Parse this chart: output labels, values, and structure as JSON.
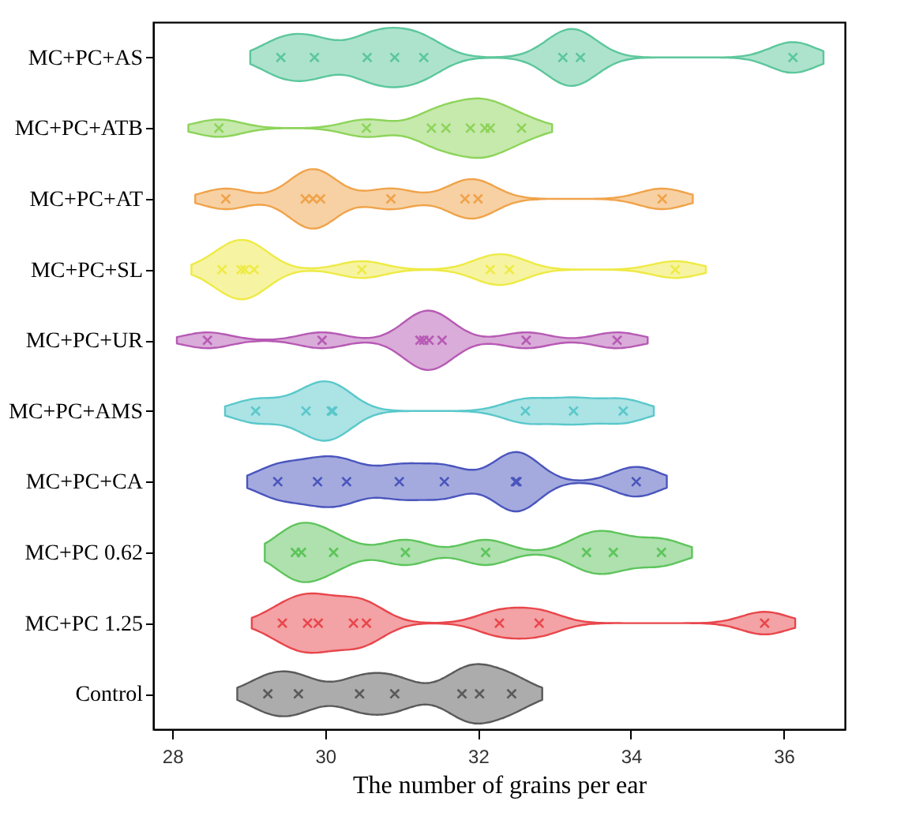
{
  "chart_data": {
    "type": "scatter",
    "orientation": "horizontal",
    "xlabel": "The number of grains per ear",
    "categories": [
      "MC+PC+AS",
      "MC+PC+ATB",
      "MC+PC+AT",
      "MC+PC+SL",
      "MC+PC+UR",
      "MC+PC+AMS",
      "MC+PC+CA",
      "MC+PC 0.62",
      "MC+PC 1.25",
      "Control"
    ],
    "series": [
      {
        "color": "#5cc79c",
        "x": [
          "MC+PC+AS",
          "MC+PC+AS",
          "MC+PC+AS",
          "MC+PC+AS",
          "MC+PC+AS",
          "MC+PC+AS",
          "MC+PC+AS",
          "MC+PC+AS"
        ],
        "values": [
          29.42,
          29.86,
          30.55,
          30.91,
          31.29,
          33.11,
          33.34,
          36.12
        ]
      },
      {
        "color": "#8dd45a",
        "x": [
          "MC+PC+ATB",
          "MC+PC+ATB",
          "MC+PC+ATB",
          "MC+PC+ATB",
          "MC+PC+ATB",
          "MC+PC+ATB",
          "MC+PC+ATB",
          "MC+PC+ATB"
        ],
        "values": [
          28.61,
          30.54,
          31.39,
          31.58,
          31.9,
          32.09,
          32.16,
          32.57
        ]
      },
      {
        "color": "#f0a34a",
        "x": [
          "MC+PC+AT",
          "MC+PC+AT",
          "MC+PC+AT",
          "MC+PC+AT",
          "MC+PC+AT",
          "MC+PC+AT",
          "MC+PC+AT",
          "MC+PC+AT"
        ],
        "values": [
          28.7,
          29.74,
          29.84,
          29.94,
          30.86,
          31.83,
          32.0,
          34.41
        ]
      },
      {
        "color": "#eeea45",
        "x": [
          "MC+PC+SL",
          "MC+PC+SL",
          "MC+PC+SL",
          "MC+PC+SL",
          "MC+PC+SL",
          "MC+PC+SL",
          "MC+PC+SL",
          "MC+PC+SL"
        ],
        "values": [
          28.65,
          28.9,
          28.95,
          29.07,
          30.48,
          32.16,
          32.41,
          34.58
        ]
      },
      {
        "color": "#b65ab4",
        "x": [
          "MC+PC+UR",
          "MC+PC+UR",
          "MC+PC+UR",
          "MC+PC+UR",
          "MC+PC+UR",
          "MC+PC+UR",
          "MC+PC+UR",
          "MC+PC+UR"
        ],
        "values": [
          28.46,
          29.96,
          31.24,
          31.29,
          31.36,
          31.53,
          32.63,
          33.82
        ]
      },
      {
        "color": "#5ac8cb",
        "x": [
          "MC+PC+AMS",
          "MC+PC+AMS",
          "MC+PC+AMS",
          "MC+PC+AMS",
          "MC+PC+AMS",
          "MC+PC+AMS",
          "MC+PC+AMS"
        ],
        "values": [
          29.09,
          29.75,
          30.08,
          30.1,
          32.62,
          33.25,
          33.9
        ]
      },
      {
        "color": "#4a55bd",
        "x": [
          "MC+PC+CA",
          "MC+PC+CA",
          "MC+PC+CA",
          "MC+PC+CA",
          "MC+PC+CA",
          "MC+PC+CA",
          "MC+PC+CA",
          "MC+PC+CA"
        ],
        "values": [
          29.38,
          29.9,
          30.28,
          30.97,
          31.56,
          32.49,
          32.51,
          34.07
        ]
      },
      {
        "color": "#5ec45c",
        "x": [
          "MC+PC 0.62",
          "MC+PC 0.62",
          "MC+PC 0.62",
          "MC+PC 0.62",
          "MC+PC 0.62",
          "MC+PC 0.62",
          "MC+PC 0.62",
          "MC+PC 0.62"
        ],
        "values": [
          29.61,
          29.69,
          30.11,
          31.05,
          32.1,
          33.42,
          33.77,
          34.4
        ]
      },
      {
        "color": "#e8464b",
        "x": [
          "MC+PC 1.25",
          "MC+PC 1.25",
          "MC+PC 1.25",
          "MC+PC 1.25",
          "MC+PC 1.25",
          "MC+PC 1.25",
          "MC+PC 1.25",
          "MC+PC 1.25"
        ],
        "values": [
          29.44,
          29.77,
          29.91,
          30.37,
          30.54,
          32.28,
          32.8,
          35.75
        ]
      },
      {
        "color": "#5a5a5a",
        "x": [
          "Control",
          "Control",
          "Control",
          "Control",
          "Control",
          "Control",
          "Control"
        ],
        "values": [
          29.25,
          29.65,
          30.45,
          30.91,
          31.79,
          32.02,
          32.44
        ]
      }
    ],
    "xlim": [
      27.75,
      36.8
    ],
    "xticks": [
      28,
      30,
      32,
      34,
      36
    ],
    "marker": "cross",
    "grid": false
  }
}
